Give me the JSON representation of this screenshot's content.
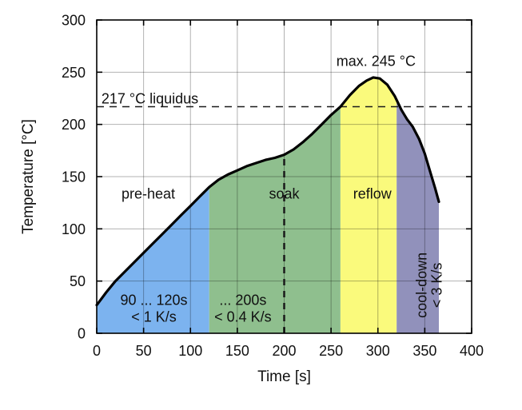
{
  "chart_data": {
    "type": "area",
    "title": "",
    "xlabel": "Time [s]",
    "ylabel": "Temperature [°C]",
    "xlim": [
      0,
      400
    ],
    "ylim": [
      0,
      300
    ],
    "xticks": [
      0,
      50,
      100,
      150,
      200,
      250,
      300,
      350,
      400
    ],
    "yticks": [
      0,
      50,
      100,
      150,
      200,
      250,
      300
    ],
    "grid": true,
    "background": "#ffffff",
    "curve_color": "#000000",
    "grid_color": "rgba(0,0,0,0.3)",
    "series": [
      {
        "name": "temperature-profile",
        "points": [
          [
            0,
            27
          ],
          [
            10,
            39
          ],
          [
            20,
            50
          ],
          [
            30,
            59
          ],
          [
            40,
            68
          ],
          [
            50,
            77
          ],
          [
            60,
            86
          ],
          [
            70,
            95
          ],
          [
            80,
            104
          ],
          [
            90,
            113
          ],
          [
            100,
            122
          ],
          [
            110,
            131
          ],
          [
            120,
            140
          ],
          [
            130,
            147
          ],
          [
            140,
            152
          ],
          [
            150,
            156
          ],
          [
            160,
            160
          ],
          [
            170,
            163
          ],
          [
            180,
            166
          ],
          [
            190,
            168
          ],
          [
            200,
            171
          ],
          [
            210,
            176
          ],
          [
            220,
            183
          ],
          [
            230,
            191
          ],
          [
            240,
            200
          ],
          [
            250,
            209
          ],
          [
            260,
            217
          ],
          [
            270,
            228
          ],
          [
            280,
            237
          ],
          [
            288,
            242
          ],
          [
            295,
            245
          ],
          [
            302,
            244
          ],
          [
            310,
            238
          ],
          [
            318,
            227
          ],
          [
            325,
            214
          ],
          [
            331,
            205
          ],
          [
            337,
            198
          ],
          [
            344,
            186
          ],
          [
            350,
            172
          ],
          [
            356,
            154
          ],
          [
            361,
            139
          ],
          [
            365,
            126
          ]
        ]
      }
    ],
    "regions": [
      {
        "name": "pre-heat",
        "color": "#7CB3EF",
        "t_start": 0,
        "t_end": 120
      },
      {
        "name": "soak",
        "color": "#8FBF8E",
        "t_start": 120,
        "t_end": 260
      },
      {
        "name": "reflow",
        "color": "#FAFA7C",
        "t_start": 260,
        "t_end": 320
      },
      {
        "name": "cool-down",
        "color": "#9191BB",
        "t_start": 320,
        "t_end": 365
      }
    ],
    "reference_lines": [
      {
        "name": "liquidus-line",
        "orientation": "horizontal",
        "value": 217
      },
      {
        "name": "soak-end-line",
        "orientation": "vertical",
        "value": 200,
        "to_temp": 171
      }
    ],
    "annotations": [
      {
        "name": "liquidus-label",
        "text": "217 °C liquidus",
        "t": 5,
        "temp": 220,
        "anchor": "start"
      },
      {
        "name": "max-temp-label",
        "text": "max. 245 °C",
        "t": 298,
        "temp": 256,
        "anchor": "middle"
      },
      {
        "name": "preheat-label",
        "text": "pre-heat",
        "t": 55,
        "temp": 129,
        "anchor": "middle"
      },
      {
        "name": "soak-label",
        "text": "soak",
        "t": 200,
        "temp": 129,
        "anchor": "middle"
      },
      {
        "name": "reflow-label",
        "text": "reflow",
        "t": 294,
        "temp": 129,
        "anchor": "middle"
      },
      {
        "name": "preheat-rate-note",
        "lines": [
          "90 ... 120s",
          "< 1 K/s"
        ],
        "t": 61,
        "temp": 27,
        "anchor": "middle"
      },
      {
        "name": "soak-rate-note",
        "lines": [
          "... 200s",
          "< 0.4 K/s"
        ],
        "t": 156,
        "temp": 27,
        "anchor": "middle"
      },
      {
        "name": "cooldown-label",
        "lines": [
          "cool-down",
          "< 3 K/s"
        ],
        "t": 352,
        "temp": 46,
        "anchor": "middle",
        "rotate": -90
      }
    ]
  }
}
